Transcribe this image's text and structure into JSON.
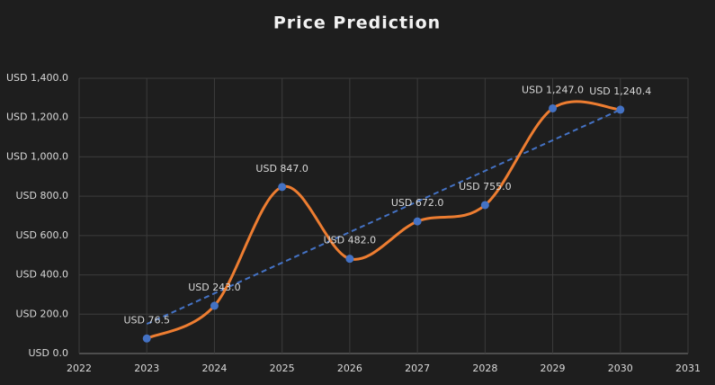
{
  "chart_data": {
    "type": "scatter",
    "title": "Price Prediction",
    "x": [
      2023,
      2024,
      2025,
      2026,
      2027,
      2028,
      2029,
      2030
    ],
    "series": [
      {
        "color": "#ed7d31",
        "marker_color": "#4472c4",
        "values": [
          76.5,
          243.0,
          847.0,
          482.0,
          672.0,
          755.0,
          1247.0,
          1240.4
        ],
        "value_labels": [
          "USD 76.5",
          "USD 243.0",
          "USD 847.0",
          "USD 482.0",
          "USD 672.0",
          "USD 755.0",
          "USD 1,247.0",
          "USD 1,240.4"
        ]
      }
    ],
    "smooth": true,
    "trendline": true,
    "trendline_color": "#4472c4",
    "xlim": [
      2022,
      2031
    ],
    "xticks": [
      2022,
      2023,
      2024,
      2025,
      2026,
      2027,
      2028,
      2029,
      2030,
      2031
    ],
    "ylim": [
      0,
      1400
    ],
    "yticks": [
      {
        "value": 0,
        "label": "USD 0.0"
      },
      {
        "value": 200,
        "label": "USD 200.0"
      },
      {
        "value": 400,
        "label": "USD 400.0"
      },
      {
        "value": 600,
        "label": "USD 600.0"
      },
      {
        "value": 800,
        "label": "USD 800.0"
      },
      {
        "value": 1000,
        "label": "USD 1,000.0"
      },
      {
        "value": 1200,
        "label": "USD 1,200.0"
      },
      {
        "value": 1400,
        "label": "USD 1,400.0"
      }
    ],
    "grid": true
  }
}
